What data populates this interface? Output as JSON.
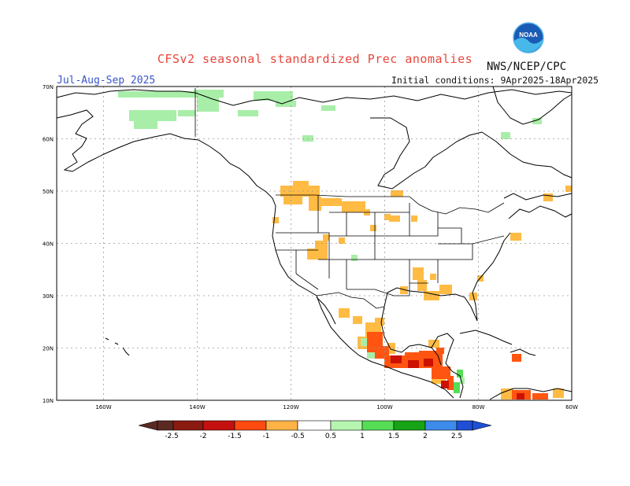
{
  "title": "CFSv2 seasonal standardized Prec anomalies",
  "organization": "NWS/NCEP/CPC",
  "logo_text": "NOAA",
  "period": "Jul-Aug-Sep 2025",
  "initial_conditions": "Initial conditions: 9Apr2025-18Apr2025",
  "map": {
    "lat_labels": [
      "70N",
      "60N",
      "50N",
      "40N",
      "30N",
      "20N",
      "10N"
    ],
    "lon_labels": [
      "160W",
      "140W",
      "120W",
      "100W",
      "80W",
      "60W"
    ],
    "colors": {
      "land_outline": "#000000",
      "grid": "#9a9a9a",
      "dry_05": "#ffbb44",
      "dry_1": "#ff5511",
      "dry_15": "#cc1100",
      "wet_05": "#a8eea8",
      "wet_1": "#55dd55"
    }
  },
  "colorbar": {
    "tick_labels": [
      "-2.5",
      "-2",
      "-1.5",
      "-1",
      "-0.5",
      "0.5",
      "1",
      "1.5",
      "2",
      "2.5"
    ],
    "segment_colors": [
      "#5a2a22",
      "#8b1a10",
      "#c51010",
      "#ff4a10",
      "#ffb347",
      "#ffffff",
      "#b5f5b0",
      "#55dd55",
      "#16a416",
      "#3d8bea",
      "#1e4fd6"
    ]
  }
}
